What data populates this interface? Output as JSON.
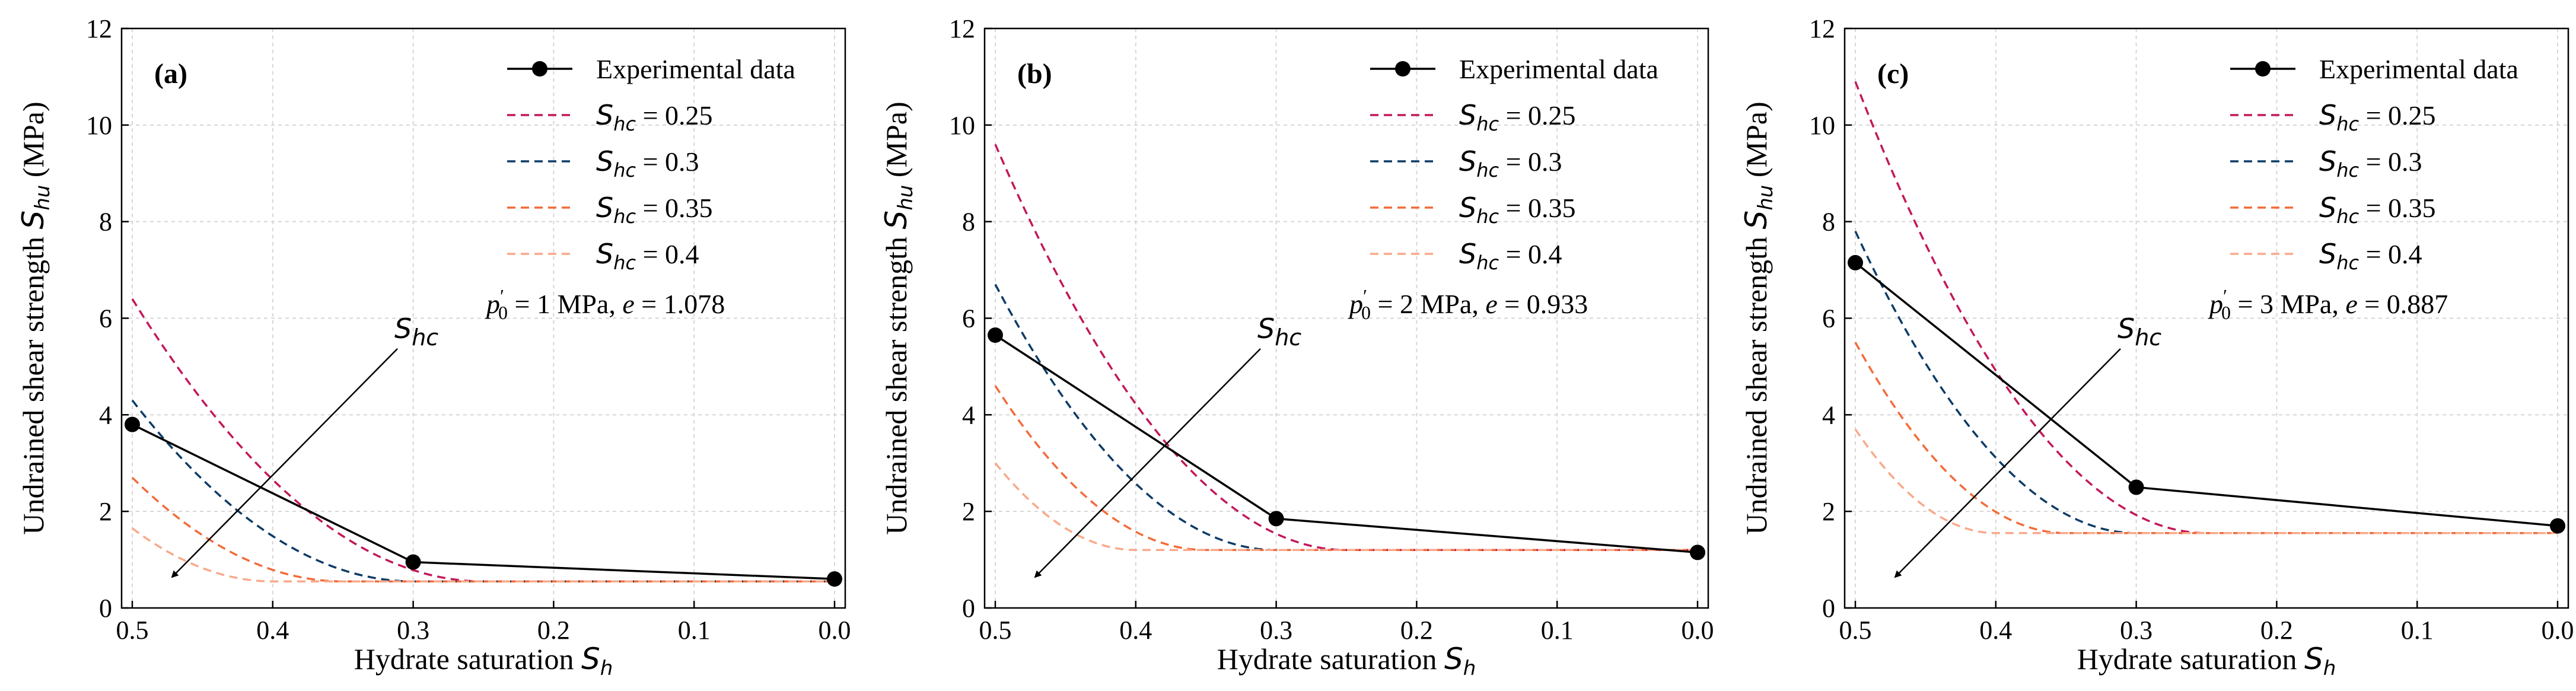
{
  "legend": {
    "experimental": "Experimental data",
    "shc_prefix": "S",
    "shc_sub": "hc",
    "eq": "= ",
    "shc_values": [
      "0.25",
      "0.3",
      "0.35",
      "0.4"
    ]
  },
  "x_axis": {
    "label_text": "Hydrate saturation ",
    "label_sym": "S",
    "label_sub": "h"
  },
  "y_axis": {
    "label_text": "Undrained shear strength ",
    "label_sym": "S",
    "label_sub": "hu",
    "label_unit": " (MPa)"
  },
  "arrow_label": {
    "sym": "S",
    "sub": "hc"
  },
  "colors": {
    "experimental": "#000000",
    "shc_0_25": "#c2185b",
    "shc_0_3": "#0d3b66",
    "shc_0_35": "#f26b3a",
    "shc_0_4": "#f9a98b"
  },
  "chart_data": [
    {
      "type": "line",
      "panel": "(a)",
      "p0_label": "p",
      "p0_value": "= 1 MPa, ",
      "e_label": "e",
      "e_value": "= 1.078",
      "xlabel": "Hydrate saturation S_h",
      "ylabel": "Undrained shear strength S_hu (MPa)",
      "xlim": [
        0.5,
        0.0
      ],
      "ylim": [
        0,
        12
      ],
      "xticks": [
        "0.5",
        "0.4",
        "0.3",
        "0.2",
        "0.1",
        "0.0"
      ],
      "yticks": [
        "0",
        "2",
        "4",
        "6",
        "8",
        "10",
        "12"
      ],
      "experimental": {
        "x": [
          0.5,
          0.3,
          0.0
        ],
        "y": [
          3.8,
          0.95,
          0.6
        ]
      },
      "series": [
        {
          "name": "S_hc = 0.25",
          "shc": 0.25,
          "floor": 0.55,
          "y_at_0_5": 6.4
        },
        {
          "name": "S_hc = 0.3",
          "shc": 0.3,
          "floor": 0.55,
          "y_at_0_5": 4.3
        },
        {
          "name": "S_hc = 0.35",
          "shc": 0.35,
          "floor": 0.55,
          "y_at_0_5": 2.7
        },
        {
          "name": "S_hc = 0.4",
          "shc": 0.4,
          "floor": 0.55,
          "y_at_0_5": 1.65
        }
      ]
    },
    {
      "type": "line",
      "panel": "(b)",
      "p0_label": "p",
      "p0_value": "= 2 MPa, ",
      "e_label": "e",
      "e_value": "= 0.933",
      "xlabel": "Hydrate saturation S_h",
      "ylabel": "Undrained shear strength S_hu (MPa)",
      "xlim": [
        0.5,
        0.0
      ],
      "ylim": [
        0,
        12
      ],
      "xticks": [
        "0.5",
        "0.4",
        "0.3",
        "0.2",
        "0.1",
        "0.0"
      ],
      "yticks": [
        "0",
        "2",
        "4",
        "6",
        "8",
        "10",
        "12"
      ],
      "experimental": {
        "x": [
          0.5,
          0.3,
          0.0
        ],
        "y": [
          5.65,
          1.85,
          1.15
        ]
      },
      "series": [
        {
          "name": "S_hc = 0.25",
          "shc": 0.25,
          "floor": 1.2,
          "y_at_0_5": 9.6
        },
        {
          "name": "S_hc = 0.3",
          "shc": 0.3,
          "floor": 1.2,
          "y_at_0_5": 6.7
        },
        {
          "name": "S_hc = 0.35",
          "shc": 0.35,
          "floor": 1.2,
          "y_at_0_5": 4.6
        },
        {
          "name": "S_hc = 0.4",
          "shc": 0.4,
          "floor": 1.2,
          "y_at_0_5": 3.0
        }
      ]
    },
    {
      "type": "line",
      "panel": "(c)",
      "p0_label": "p",
      "p0_value": "= 3 MPa, ",
      "e_label": "e",
      "e_value": "= 0.887",
      "xlabel": "Hydrate saturation S_h",
      "ylabel": "Undrained shear strength S_hu (MPa)",
      "xlim": [
        0.5,
        0.0
      ],
      "ylim": [
        0,
        12
      ],
      "xticks": [
        "0.5",
        "0.4",
        "0.3",
        "0.2",
        "0.1",
        "0.0"
      ],
      "yticks": [
        "0",
        "2",
        "4",
        "6",
        "8",
        "10",
        "12"
      ],
      "experimental": {
        "x": [
          0.5,
          0.3,
          0.0
        ],
        "y": [
          7.15,
          2.5,
          1.7
        ]
      },
      "series": [
        {
          "name": "S_hc = 0.25",
          "shc": 0.25,
          "floor": 1.55,
          "y_at_0_5": 10.9
        },
        {
          "name": "S_hc = 0.3",
          "shc": 0.3,
          "floor": 1.55,
          "y_at_0_5": 7.8
        },
        {
          "name": "S_hc = 0.35",
          "shc": 0.35,
          "floor": 1.55,
          "y_at_0_5": 5.5
        },
        {
          "name": "S_hc = 0.4",
          "shc": 0.4,
          "floor": 1.55,
          "y_at_0_5": 3.7
        }
      ]
    }
  ]
}
